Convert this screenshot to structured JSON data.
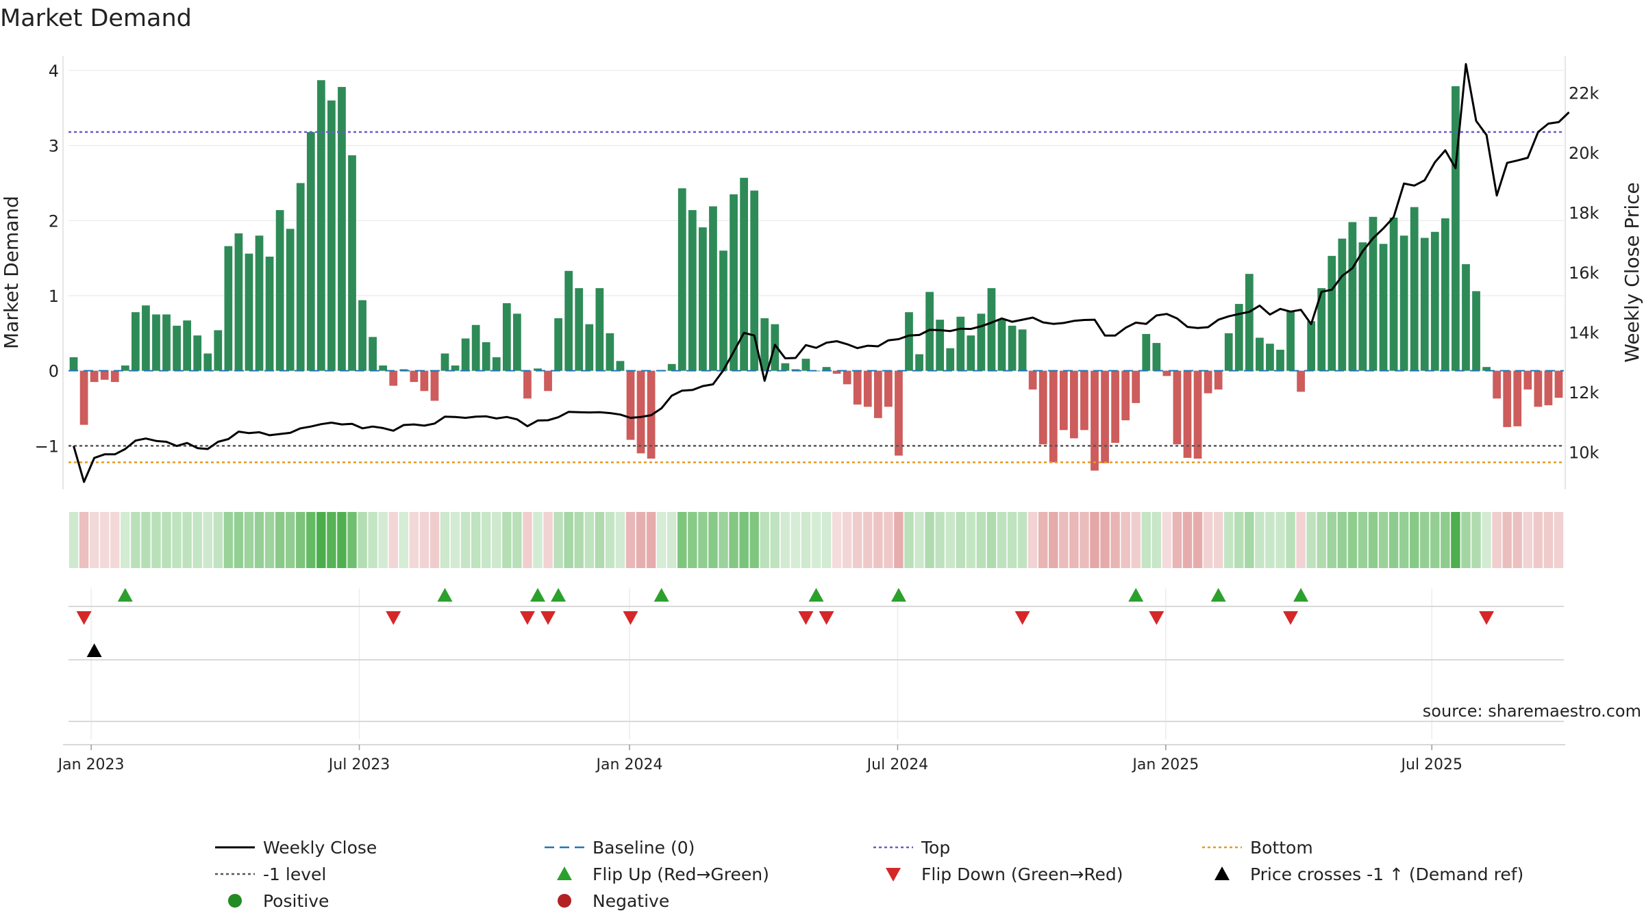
{
  "chart_data": {
    "type": "bar",
    "title": "Market Demand",
    "ylabel_left": "Market Demand",
    "ylabel_right": "Weekly Close Price",
    "source_text": "source: sharemaestro.com",
    "ylim_left": [
      -1.58,
      4.3
    ],
    "ylim_right": [
      8750,
      23500
    ],
    "yticks_left": [
      4,
      3,
      2,
      1,
      0,
      -1
    ],
    "ytick_labels_left": [
      "4",
      "3",
      "2",
      "1",
      "0",
      "−1"
    ],
    "yticks_right": [
      22000,
      20000,
      18000,
      16000,
      14000,
      12000,
      10000
    ],
    "ytick_labels_right": [
      "22k",
      "20k",
      "18k",
      "16k",
      "14k",
      "12k",
      "10k"
    ],
    "x_tick_labels": [
      "Jan 2023",
      "Jul 2023",
      "Jan 2024",
      "Jul 2024",
      "Jan 2025",
      "Jul 2025"
    ],
    "x_tick_weeks": [
      2.2,
      28.2,
      54.4,
      80.4,
      106.4,
      132.2
    ],
    "reference_lines": {
      "top": 3.18,
      "bottom": -1.22,
      "minus_one": -1.0,
      "baseline": 0
    },
    "colors": {
      "positive": "#2e8b57",
      "negative": "#cd5c5c",
      "price": "#000000",
      "baseline": "#1f77b4",
      "top": "#6a5acd",
      "bottom": "#e69a1c",
      "minus_one": "#555555",
      "flip_up": "#2ca02c",
      "flip_down": "#d62728",
      "cross": "#000000"
    },
    "demand": [
      0.18,
      -0.72,
      -0.15,
      -0.12,
      -0.15,
      0.07,
      0.78,
      0.87,
      0.75,
      0.75,
      0.6,
      0.67,
      0.47,
      0.23,
      0.54,
      1.66,
      1.83,
      1.56,
      1.8,
      1.52,
      2.14,
      1.89,
      2.5,
      3.18,
      3.87,
      3.6,
      3.78,
      2.87,
      0.94,
      0.45,
      0.07,
      -0.2,
      0.02,
      -0.15,
      -0.27,
      -0.4,
      0.23,
      0.07,
      0.43,
      0.61,
      0.38,
      0.18,
      0.9,
      0.76,
      -0.37,
      0.03,
      -0.27,
      0.7,
      1.33,
      1.1,
      0.62,
      1.1,
      0.5,
      0.13,
      -0.92,
      -1.1,
      -1.17,
      0.01,
      0.09,
      2.43,
      2.14,
      1.91,
      2.19,
      1.6,
      2.35,
      2.57,
      2.4,
      0.7,
      0.62,
      0.1,
      0.02,
      0.16,
      0.0,
      0.05,
      -0.04,
      -0.18,
      -0.45,
      -0.48,
      -0.63,
      -0.48,
      -1.13,
      0.78,
      0.22,
      1.05,
      0.68,
      0.3,
      0.72,
      0.47,
      0.76,
      1.1,
      0.68,
      0.6,
      0.55,
      -0.25,
      -0.98,
      -1.22,
      -0.79,
      -0.9,
      -0.79,
      -1.33,
      -1.23,
      -0.96,
      -0.66,
      -0.43,
      0.49,
      0.37,
      -0.07,
      -0.98,
      -1.16,
      -1.17,
      -0.3,
      -0.25,
      0.5,
      0.89,
      1.29,
      0.44,
      0.36,
      0.28,
      0.8,
      -0.28,
      0.66,
      1.1,
      1.53,
      1.76,
      1.98,
      1.71,
      2.05,
      1.69,
      2.04,
      1.8,
      2.18,
      1.77,
      1.85,
      2.03,
      3.79,
      1.42,
      1.06,
      0.05,
      -0.37,
      -0.75,
      -0.74,
      -0.25,
      -0.48,
      -0.46,
      -0.36
    ],
    "weekly_close": [
      10200,
      9000,
      9800,
      9920,
      9920,
      10100,
      10380,
      10450,
      10370,
      10340,
      10200,
      10300,
      10130,
      10100,
      10340,
      10430,
      10680,
      10630,
      10660,
      10560,
      10600,
      10640,
      10790,
      10850,
      10930,
      10980,
      10920,
      10940,
      10790,
      10850,
      10800,
      10710,
      10900,
      10920,
      10880,
      10950,
      11180,
      11170,
      11140,
      11180,
      11190,
      11120,
      11170,
      11090,
      10860,
      11050,
      11060,
      11160,
      11340,
      11330,
      11320,
      11330,
      11300,
      11250,
      11140,
      11170,
      11230,
      11460,
      11880,
      12050,
      12070,
      12200,
      12260,
      12730,
      13350,
      13980,
      13890,
      12380,
      13580,
      13130,
      13140,
      13570,
      13480,
      13650,
      13700,
      13600,
      13470,
      13550,
      13530,
      13730,
      13770,
      13890,
      13910,
      14080,
      14070,
      14040,
      14120,
      14110,
      14200,
      14320,
      14460,
      14350,
      14420,
      14490,
      14330,
      14280,
      14310,
      14380,
      14410,
      14420,
      13890,
      13890,
      14150,
      14320,
      14280,
      14560,
      14610,
      14460,
      14180,
      14140,
      14170,
      14420,
      14530,
      14610,
      14680,
      14890,
      14590,
      14780,
      14690,
      14750,
      14270,
      15350,
      15420,
      15880,
      16140,
      16710,
      17140,
      17470,
      17850,
      18970,
      18900,
      19080,
      19680,
      20080,
      19480,
      22960,
      21060,
      20590,
      18570,
      19660,
      19740,
      19830,
      20690,
      20970,
      21020,
      21350
    ],
    "flip_up_weeks": [
      5,
      36,
      45,
      47,
      57,
      72,
      80,
      103,
      111,
      119
    ],
    "flip_down_weeks": [
      1,
      31,
      44,
      46,
      54,
      71,
      73,
      92,
      105,
      118,
      137
    ],
    "price_cross_weeks": [
      2
    ],
    "legend": [
      {
        "label": "Weekly Close",
        "symbol": "line-solid"
      },
      {
        "label": "Baseline (0)",
        "symbol": "line-dashed"
      },
      {
        "label": "Top",
        "symbol": "line-dotted-blue"
      },
      {
        "label": "Bottom",
        "symbol": "line-dotted-orange"
      },
      {
        "label": "-1 level",
        "symbol": "line-dotted-gray"
      },
      {
        "label": "Flip Up (Red→Green)",
        "symbol": "triangle-up-green"
      },
      {
        "label": "Flip Down (Green→Red)",
        "symbol": "triangle-down-red"
      },
      {
        "label": "Price crosses -1 ↑ (Demand ref)",
        "symbol": "triangle-up-black"
      },
      {
        "label": "Positive",
        "symbol": "dot-green"
      },
      {
        "label": "Negative",
        "symbol": "dot-red"
      }
    ]
  }
}
